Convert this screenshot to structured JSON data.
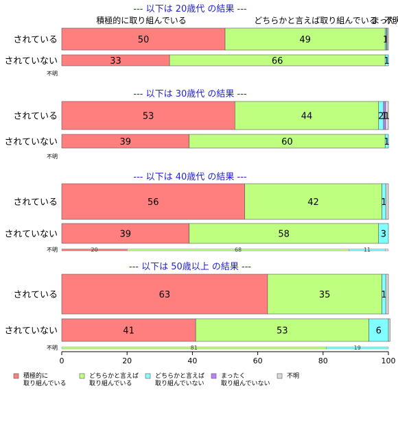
{
  "chart_data": {
    "type": "bar",
    "orientation": "horizontal",
    "stacked": true,
    "xlim": [
      0,
      100
    ],
    "x_ticks": [
      "0",
      "20",
      "40",
      "60",
      "80",
      "100"
    ],
    "top_labels": [
      "積極的に取り組んでいる",
      "どちらかと言えば取り組んでいる",
      "まったく",
      "不明"
    ],
    "legend": {
      "placement": "bottom",
      "entries": [
        {
          "line1": "積極的に",
          "line2": "取り組んでいる",
          "color": "#ff7f7f"
        },
        {
          "line1": "どちらかと言えば",
          "line2": "取り組んでいる",
          "color": "#bfff7f"
        },
        {
          "line1": "どちらかと言えば",
          "line2": "取り組んでいない",
          "color": "#7fffff"
        },
        {
          "line1": "まったく",
          "line2": "取り組んでいない",
          "color": "#bf7fff"
        },
        {
          "line1": "不明",
          "line2": "",
          "color": "#d9d9d9"
        }
      ]
    },
    "groups": [
      {
        "title": "--- 以下は 20歳代 の結果 ---",
        "rows": [
          {
            "label": "されている",
            "values": [
              50,
              49,
              0.4,
              0.2,
              0.4
            ],
            "labels": [
              "50",
              "49",
              "1",
              "",
              ""
            ]
          },
          {
            "label": "されていない",
            "values": [
              33,
              66,
              1,
              0,
              0
            ],
            "labels": [
              "33",
              "66",
              "1",
              "",
              ""
            ]
          }
        ],
        "unknown": {
          "label": "不明",
          "values": [],
          "labels": []
        }
      },
      {
        "title": "--- 以下は 30歳代 の結果 ---",
        "rows": [
          {
            "label": "されている",
            "values": [
              53,
              44,
              1.5,
              0.6,
              0.9
            ],
            "labels": [
              "53",
              "44",
              "2",
              "1",
              "1"
            ]
          },
          {
            "label": "されていない",
            "values": [
              39,
              60,
              1,
              0,
              0
            ],
            "labels": [
              "39",
              "60",
              "1",
              "",
              ""
            ]
          }
        ],
        "unknown": {
          "label": "不明",
          "values": [],
          "labels": []
        }
      },
      {
        "title": "--- 以下は 40歳代 の結果 ---",
        "rows": [
          {
            "label": "されている",
            "values": [
              56,
              42,
              1.2,
              0,
              0.8
            ],
            "labels": [
              "56",
              "42",
              "1",
              "",
              ""
            ]
          },
          {
            "label": "されていない",
            "values": [
              39,
              58,
              3,
              0,
              0
            ],
            "labels": [
              "39",
              "58",
              "3",
              "",
              ""
            ]
          }
        ],
        "unknown": {
          "label": "不明",
          "values": [
            20,
            68,
            11,
            0,
            1
          ],
          "labels": [
            "20",
            "68",
            "11",
            "",
            ""
          ]
        }
      },
      {
        "title": "--- 以下は 50歳以上 の結果 ---",
        "rows": [
          {
            "label": "されている",
            "values": [
              63,
              35,
              1.2,
              0,
              0.8
            ],
            "labels": [
              "63",
              "35",
              "1",
              "",
              ""
            ]
          },
          {
            "label": "されていない",
            "values": [
              41,
              53,
              6,
              0,
              0.5
            ],
            "labels": [
              "41",
              "53",
              "6",
              "",
              ""
            ]
          }
        ],
        "unknown": {
          "label": "不明",
          "values": [
            0,
            81,
            19,
            0,
            0
          ],
          "labels": [
            "",
            "81",
            "19",
            "",
            ""
          ]
        }
      }
    ]
  }
}
